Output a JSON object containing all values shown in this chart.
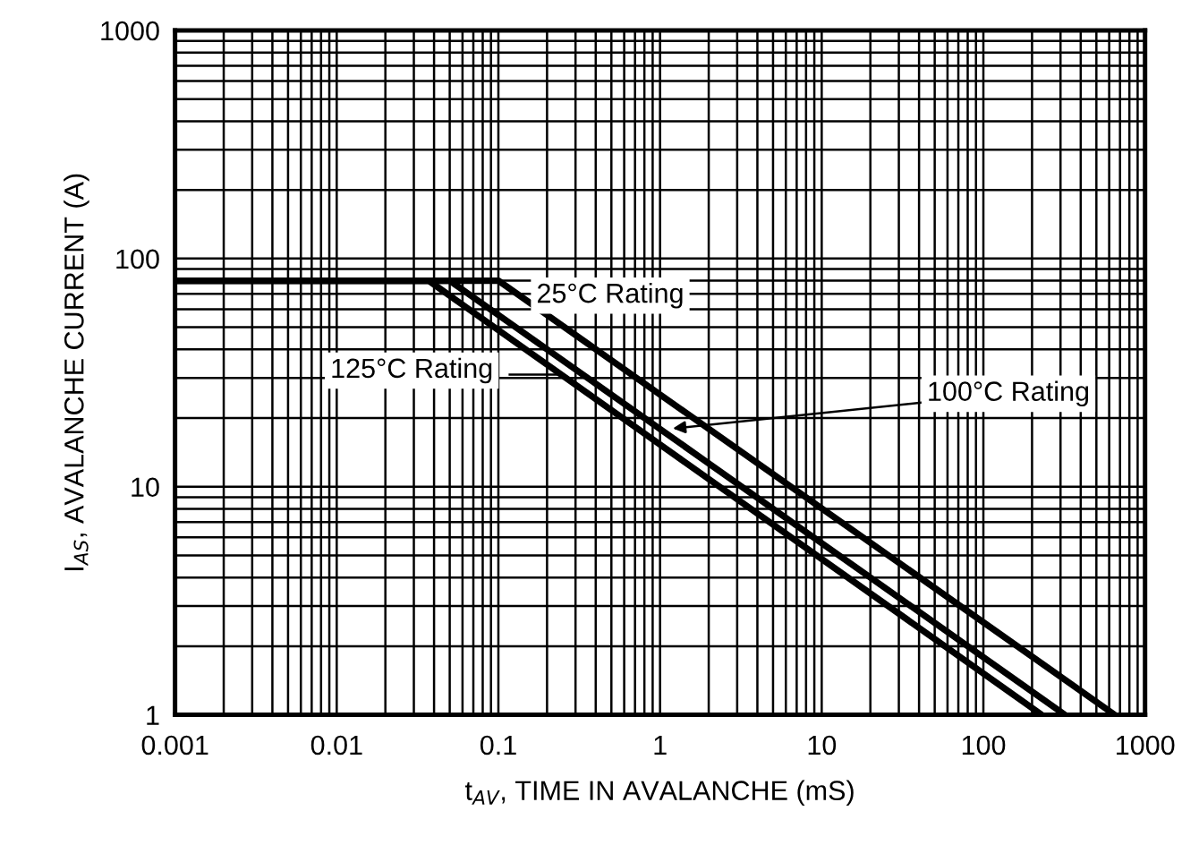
{
  "chart_data": {
    "type": "line",
    "xlabel": "t$_{AV}$, TIME IN AVALANCHE (mS)",
    "ylabel": "I$_{AS}$, AVALANCHE CURRENT (A)",
    "log": "xy",
    "grid": true,
    "xlim": [
      0.001,
      1000
    ],
    "ylim": [
      1,
      1000
    ],
    "xticks": [
      0.001,
      0.01,
      0.1,
      1,
      10,
      100,
      1000
    ],
    "yticks": [
      1,
      10,
      100,
      1000
    ],
    "series": [
      {
        "color": "#000000",
        "x": [
          0.001,
          0.1,
          650
        ],
        "values": [
          80,
          80,
          1
        ]
      },
      {
        "color": "#000000",
        "x": [
          0.001,
          0.05,
          320
        ],
        "values": [
          80,
          80,
          1
        ]
      },
      {
        "color": "#000000",
        "x": [
          0.001,
          0.037,
          230
        ],
        "values": [
          80,
          80,
          1
        ]
      }
    ],
    "annotations": [
      {
        "text": "25°C Rating",
        "x": 0.1,
        "y": 80
      },
      {
        "text": "100°C Rating",
        "x": 1.2,
        "y": 18
      },
      "125°C Rating"
    ]
  }
}
